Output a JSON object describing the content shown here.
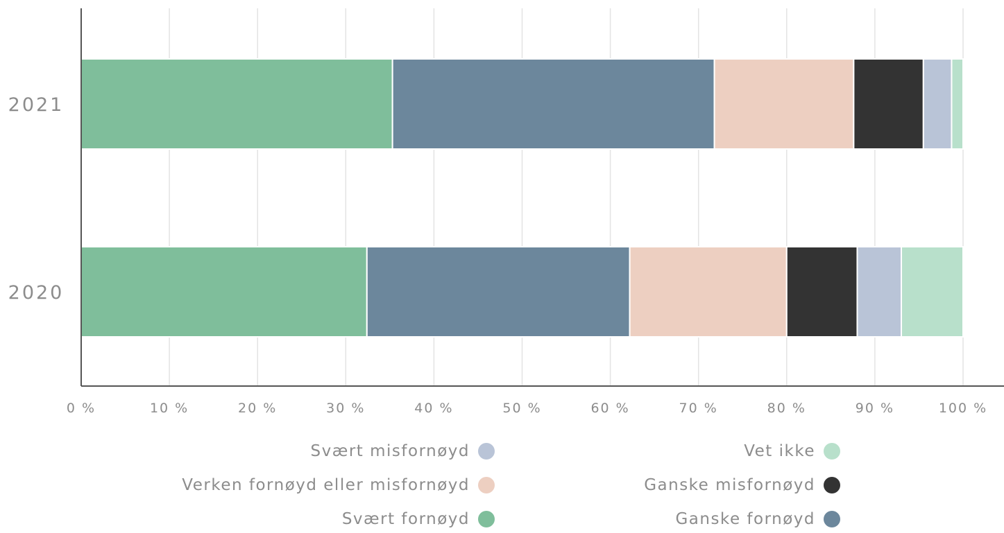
{
  "chart_data": {
    "type": "bar",
    "orientation": "horizontal",
    "stacked": true,
    "categories": [
      "2021",
      "2020"
    ],
    "xlim": [
      0,
      100
    ],
    "x_ticks": [
      "0 %",
      "10 %",
      "20 %",
      "30 %",
      "40 %",
      "50 %",
      "60 %",
      "70 %",
      "80 %",
      "90 %",
      "100 %"
    ],
    "grid": true,
    "legend_position": "bottom",
    "series": [
      {
        "name": "Svært fornøyd",
        "color": "#7fbe9b",
        "values": [
          35.3,
          32.4
        ]
      },
      {
        "name": "Ganske fornøyd",
        "color": "#6c879c",
        "values": [
          36.5,
          29.8
        ]
      },
      {
        "name": "Verken fornøyd eller misfornøyd",
        "color": "#edcfc1",
        "values": [
          15.8,
          17.8
        ]
      },
      {
        "name": "Ganske misfornøyd",
        "color": "#333333",
        "values": [
          7.9,
          8.0
        ]
      },
      {
        "name": "Svært misfornøyd",
        "color": "#b9c4d7",
        "values": [
          3.2,
          5.0
        ]
      },
      {
        "name": "Vet ikke",
        "color": "#b8e0cb",
        "values": [
          1.3,
          7.0
        ]
      }
    ],
    "legend": [
      {
        "label": "Svært misfornøyd",
        "color": "#b9c4d7"
      },
      {
        "label": "Vet ikke",
        "color": "#b8e0cb"
      },
      {
        "label": "Verken fornøyd eller misfornøyd",
        "color": "#edcfc1"
      },
      {
        "label": "Ganske misfornøyd",
        "color": "#333333"
      },
      {
        "label": "Svært fornøyd",
        "color": "#7fbe9b"
      },
      {
        "label": "Ganske fornøyd",
        "color": "#6c879c"
      }
    ]
  }
}
